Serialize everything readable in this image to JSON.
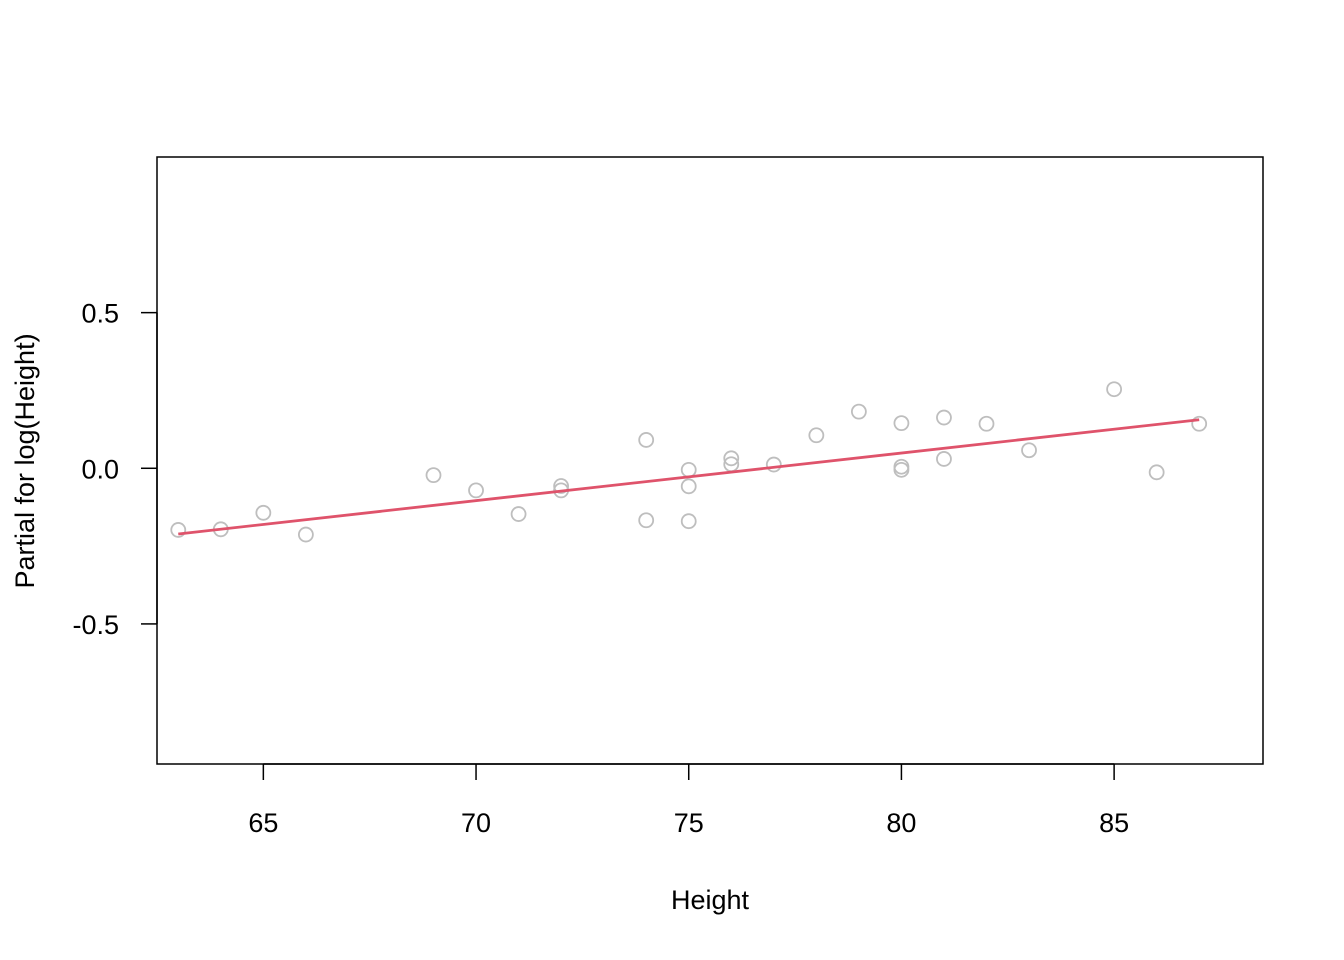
{
  "chart_data": {
    "type": "scatter",
    "title": "",
    "xlabel": "Height",
    "ylabel": "Partial for log(Height)",
    "xlim": [
      62.5,
      88.5
    ],
    "ylim": [
      -0.95,
      1.0
    ],
    "xticks": [
      65,
      70,
      75,
      80,
      85
    ],
    "xtick_labels": [
      "65",
      "70",
      "75",
      "80",
      "85"
    ],
    "yticks": [
      -0.5,
      0.0,
      0.5
    ],
    "ytick_labels": [
      "-0.5",
      "0.0",
      "0.5"
    ],
    "grid": false,
    "series": [
      {
        "kind": "points",
        "color": "#bebebe",
        "points": [
          [
            63,
            -0.198
          ],
          [
            64,
            -0.196
          ],
          [
            65,
            -0.143
          ],
          [
            66,
            -0.213
          ],
          [
            69,
            -0.022
          ],
          [
            70,
            -0.071
          ],
          [
            71,
            -0.147
          ],
          [
            72,
            -0.057
          ],
          [
            72,
            -0.071
          ],
          [
            74,
            0.091
          ],
          [
            74,
            -0.167
          ],
          [
            75,
            -0.005
          ],
          [
            75,
            -0.058
          ],
          [
            75,
            -0.17
          ],
          [
            76,
            0.032
          ],
          [
            76,
            0.013
          ],
          [
            77,
            0.012
          ],
          [
            78,
            0.106
          ],
          [
            79,
            0.182
          ],
          [
            80,
            0.145
          ],
          [
            80,
            0.005
          ],
          [
            80,
            -0.005
          ],
          [
            81,
            0.163
          ],
          [
            81,
            0.03
          ],
          [
            82,
            0.143
          ],
          [
            83,
            0.058
          ],
          [
            85,
            0.254
          ],
          [
            86,
            -0.013
          ],
          [
            87,
            0.143
          ]
        ]
      },
      {
        "kind": "line",
        "color": "#df536b",
        "points": [
          [
            63,
            -0.211
          ],
          [
            87,
            0.156
          ]
        ]
      }
    ]
  }
}
